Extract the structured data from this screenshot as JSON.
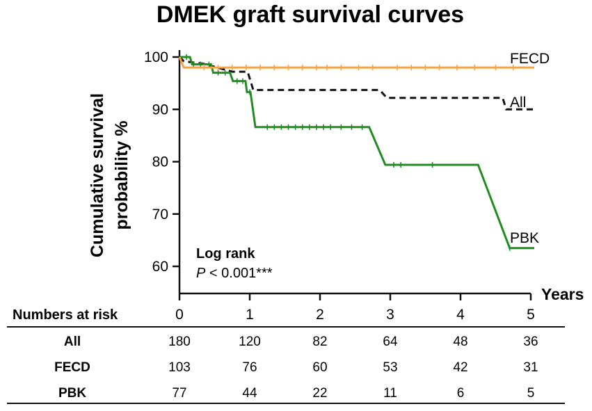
{
  "chart_data": {
    "type": "line",
    "title": "DMEK graft survival curves",
    "ylabel": "Cumulative survival probability %",
    "ylabel_lines": [
      "Cumulative survival",
      "probability %"
    ],
    "xlabel": "Years",
    "xlim": [
      0,
      5
    ],
    "ylim": [
      57,
      101
    ],
    "yticks": [
      60,
      70,
      80,
      90,
      100
    ],
    "xticks": [
      0,
      1,
      2,
      3,
      4,
      5
    ],
    "grid": false,
    "series": [
      {
        "name": "FECD",
        "color": "#F5A445",
        "dash": false,
        "points": [
          [
            0,
            100
          ],
          [
            0.06,
            98
          ],
          [
            5.05,
            98
          ]
        ],
        "censor": [
          0.35,
          0.55,
          0.75,
          0.95,
          1.15,
          1.35,
          1.55,
          1.75,
          1.95,
          2.1,
          2.3,
          2.55,
          2.75,
          3.1,
          3.3,
          3.5,
          3.7,
          3.95,
          4.2,
          4.5,
          4.75
        ]
      },
      {
        "name": "All",
        "color": "#111111",
        "dash": true,
        "points": [
          [
            0,
            100
          ],
          [
            0.06,
            99.2
          ],
          [
            0.35,
            98.7
          ],
          [
            0.75,
            97.2
          ],
          [
            0.97,
            97.2
          ],
          [
            1.05,
            93.7
          ],
          [
            2.85,
            93.7
          ],
          [
            2.95,
            92.2
          ],
          [
            4.6,
            92.2
          ],
          [
            4.65,
            90
          ],
          [
            5.05,
            90
          ]
        ],
        "censor": []
      },
      {
        "name": "PBK",
        "color": "#228B22",
        "dash": false,
        "points": [
          [
            0,
            100
          ],
          [
            0.15,
            100
          ],
          [
            0.18,
            98.6
          ],
          [
            0.45,
            98.6
          ],
          [
            0.48,
            97
          ],
          [
            0.72,
            97
          ],
          [
            0.76,
            95.4
          ],
          [
            0.94,
            95.4
          ],
          [
            0.96,
            93.3
          ],
          [
            1.01,
            93.3
          ],
          [
            1.04,
            90.5
          ],
          [
            1.08,
            86.6
          ],
          [
            2.7,
            86.6
          ],
          [
            2.93,
            79.4
          ],
          [
            4.25,
            79.4
          ],
          [
            4.7,
            63.5
          ],
          [
            5.05,
            63.5
          ]
        ],
        "censor": [
          0.1,
          0.2,
          0.3,
          0.42,
          0.55,
          0.65,
          0.82,
          0.9,
          1.0,
          1.25,
          1.35,
          1.45,
          1.55,
          1.65,
          1.75,
          1.85,
          1.95,
          2.05,
          2.15,
          2.3,
          2.45,
          2.6,
          3.05,
          3.15,
          3.6,
          4.7
        ]
      }
    ],
    "annotations": {
      "logrank_label": "Log rank",
      "p_prefix": "P",
      "p_value": " < 0.001***"
    },
    "risk_table": {
      "header": "Numbers at risk",
      "rows": [
        {
          "name": "All",
          "values": [
            180,
            120,
            82,
            64,
            48,
            36
          ]
        },
        {
          "name": "FECD",
          "values": [
            103,
            76,
            60,
            53,
            42,
            31
          ]
        },
        {
          "name": "PBK",
          "values": [
            77,
            44,
            22,
            11,
            6,
            5
          ]
        }
      ]
    }
  }
}
